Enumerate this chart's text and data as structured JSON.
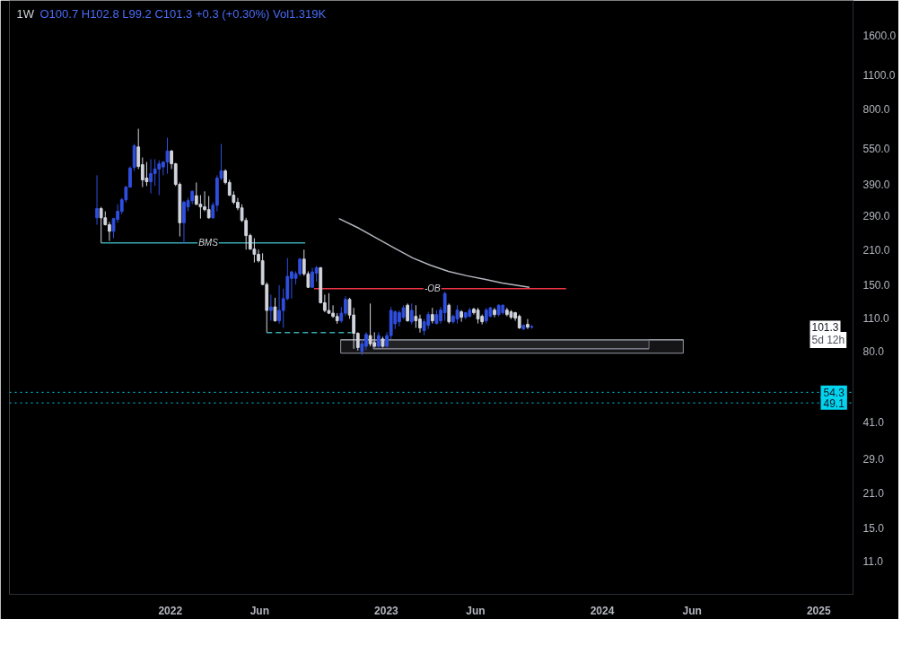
{
  "chart_data": {
    "type": "candlestick",
    "title": "1W",
    "subtitle": "O100.7 H102.8 L99.2 C101.3 +0.3 (+0.30%) Vol1.319K",
    "x": [
      "2021-08-30",
      "2021-09-06",
      "2021-09-13",
      "2021-09-20",
      "2021-09-27",
      "2021-10-04",
      "2021-10-11",
      "2021-10-18",
      "2021-10-25",
      "2021-11-01",
      "2021-11-08",
      "2021-11-15",
      "2021-11-22",
      "2021-11-29",
      "2021-12-06",
      "2021-12-13",
      "2021-12-20",
      "2021-12-27",
      "2022-01-03",
      "2022-01-10",
      "2022-01-17",
      "2022-01-24",
      "2022-01-31",
      "2022-02-07",
      "2022-02-14",
      "2022-02-21",
      "2022-02-28",
      "2022-03-07",
      "2022-03-14",
      "2022-03-21",
      "2022-03-28",
      "2022-04-04",
      "2022-04-11",
      "2022-04-18",
      "2022-04-25",
      "2022-05-02",
      "2022-05-09",
      "2022-05-16",
      "2022-05-23",
      "2022-05-30",
      "2022-06-06",
      "2022-06-13",
      "2022-06-20",
      "2022-06-27",
      "2022-07-04",
      "2022-07-11",
      "2022-07-18",
      "2022-07-25",
      "2022-08-01",
      "2022-08-08",
      "2022-08-15",
      "2022-08-22",
      "2022-08-29",
      "2022-09-05",
      "2022-09-12",
      "2022-09-19",
      "2022-09-26",
      "2022-10-03",
      "2022-10-10",
      "2022-10-17",
      "2022-10-24",
      "2022-10-31",
      "2022-11-07",
      "2022-11-14",
      "2022-11-21",
      "2022-11-28",
      "2022-12-05",
      "2022-12-12",
      "2022-12-19",
      "2022-12-26",
      "2023-01-02",
      "2023-01-09",
      "2023-01-16",
      "2023-01-23",
      "2023-01-30",
      "2023-02-06",
      "2023-02-13",
      "2023-02-20",
      "2023-02-27",
      "2023-03-06",
      "2023-03-13",
      "2023-03-20",
      "2023-03-27",
      "2023-04-03",
      "2023-04-10",
      "2023-04-17",
      "2023-04-24",
      "2023-05-01",
      "2023-05-08",
      "2023-05-15",
      "2023-05-22",
      "2023-05-29",
      "2023-06-05",
      "2023-06-12",
      "2023-06-19",
      "2023-06-26",
      "2023-07-03",
      "2023-07-10",
      "2023-07-17",
      "2023-07-24",
      "2023-07-31",
      "2023-08-07",
      "2023-08-14",
      "2023-08-21",
      "2023-08-28",
      "2023-09-04"
    ],
    "ohlc": [
      [
        284,
        425,
        266,
        310
      ],
      [
        310,
        315,
        224,
        284
      ],
      [
        284,
        302,
        264,
        266
      ],
      [
        266,
        273,
        228,
        250
      ],
      [
        250,
        284,
        234,
        282
      ],
      [
        280,
        323,
        271,
        302
      ],
      [
        302,
        343,
        294,
        337
      ],
      [
        337,
        384,
        329,
        380
      ],
      [
        380,
        462,
        378,
        455
      ],
      [
        458,
        572,
        443,
        562
      ],
      [
        556,
        661,
        451,
        462
      ],
      [
        470,
        503,
        380,
        407
      ],
      [
        414,
        482,
        384,
        400
      ],
      [
        400,
        495,
        358,
        432
      ],
      [
        432,
        495,
        384,
        451
      ],
      [
        451,
        490,
        352,
        474
      ],
      [
        460,
        485,
        425,
        482
      ],
      [
        482,
        607,
        432,
        535
      ],
      [
        535,
        540,
        451,
        474
      ],
      [
        474,
        478,
        384,
        390
      ],
      [
        390,
        397,
        238,
        271
      ],
      [
        271,
        334,
        222,
        329
      ],
      [
        315,
        343,
        302,
        334
      ],
      [
        334,
        368,
        323,
        365
      ],
      [
        350,
        397,
        320,
        323
      ],
      [
        323,
        352,
        282,
        315
      ],
      [
        315,
        365,
        302,
        307
      ],
      [
        307,
        349,
        282,
        284
      ],
      [
        284,
        329,
        282,
        320
      ],
      [
        320,
        425,
        302,
        414
      ],
      [
        414,
        572,
        405,
        443
      ],
      [
        443,
        450,
        390,
        397
      ],
      [
        397,
        407,
        349,
        352
      ],
      [
        352,
        365,
        323,
        329
      ],
      [
        329,
        343,
        305,
        312
      ],
      [
        312,
        323,
        273,
        277
      ],
      [
        277,
        284,
        210,
        240
      ],
      [
        240,
        244,
        210,
        211
      ],
      [
        211,
        234,
        186,
        201
      ],
      [
        201,
        210,
        186,
        189
      ],
      [
        189,
        203,
        150,
        151
      ],
      [
        151,
        154,
        95.7,
        118
      ],
      [
        118,
        137,
        107,
        122
      ],
      [
        122,
        133,
        106,
        107
      ],
      [
        107,
        150,
        104,
        118
      ],
      [
        118,
        145,
        100,
        132
      ],
      [
        132,
        194,
        130,
        163
      ],
      [
        160,
        172,
        132,
        170
      ],
      [
        160,
        171,
        151,
        167
      ],
      [
        167,
        194,
        163,
        192
      ],
      [
        192,
        210,
        164,
        167
      ],
      [
        167,
        171,
        146,
        147
      ],
      [
        147,
        177,
        146,
        170
      ],
      [
        168,
        180,
        155,
        177
      ],
      [
        177,
        178,
        126,
        127
      ],
      [
        127,
        137,
        116,
        118
      ],
      [
        118,
        139,
        114,
        115
      ],
      [
        115,
        124,
        110,
        111.5
      ],
      [
        111.5,
        115,
        104,
        107
      ],
      [
        107,
        122,
        105,
        115
      ],
      [
        115,
        135,
        112,
        131
      ],
      [
        131,
        133,
        109,
        113
      ],
      [
        113,
        121,
        82,
        95
      ],
      [
        95,
        96,
        80.7,
        83
      ],
      [
        80,
        90,
        77.3,
        86
      ],
      [
        84,
        96,
        81,
        94
      ],
      [
        93,
        126,
        84,
        86
      ],
      [
        87,
        96,
        83,
        84
      ],
      [
        84,
        96,
        83,
        93
      ],
      [
        90,
        92,
        83,
        84
      ],
      [
        84,
        96,
        83,
        93
      ],
      [
        93,
        122,
        90,
        118
      ],
      [
        104,
        118,
        99,
        116.5
      ],
      [
        106,
        118,
        101.5,
        115.5
      ],
      [
        110.6,
        124,
        108.8,
        121
      ],
      [
        124,
        126,
        106,
        107
      ],
      [
        106,
        126,
        103.4,
        118
      ],
      [
        111.6,
        124,
        100,
        107
      ],
      [
        108.8,
        113.5,
        95.7,
        100
      ],
      [
        97.4,
        108.8,
        93.3,
        106
      ],
      [
        102.5,
        116.5,
        99,
        113.5
      ],
      [
        113.5,
        121,
        104.3,
        107
      ],
      [
        104.3,
        118.4,
        103.4,
        113.5
      ],
      [
        107,
        122,
        104.3,
        118.4
      ],
      [
        115.5,
        141,
        107,
        138.5
      ],
      [
        124,
        126,
        104.3,
        106
      ],
      [
        106,
        113.5,
        104.3,
        111.6
      ],
      [
        108.8,
        124,
        104.3,
        118.4
      ],
      [
        116.5,
        118.4,
        106,
        110.6
      ],
      [
        110.6,
        116.5,
        108.8,
        115.5
      ],
      [
        111.6,
        121,
        110.6,
        118.4
      ],
      [
        119.4,
        121,
        113.5,
        115.5
      ],
      [
        118.4,
        121,
        104.3,
        108.8
      ],
      [
        111.6,
        113.5,
        103.4,
        106
      ],
      [
        107,
        121,
        104.3,
        118.4
      ],
      [
        111.6,
        122,
        110.6,
        121
      ],
      [
        118.4,
        121,
        110.6,
        113.5
      ],
      [
        113.5,
        125,
        111.6,
        124
      ],
      [
        115.5,
        125,
        113.5,
        124
      ],
      [
        118.4,
        121,
        111.6,
        113.5
      ],
      [
        116.5,
        118.4,
        108.8,
        110.6
      ],
      [
        115.5,
        116.5,
        107,
        109.7
      ],
      [
        111.6,
        113.5,
        99,
        100
      ],
      [
        99,
        103.4,
        98.1,
        102.5
      ],
      [
        103.4,
        108.8,
        99,
        100.7
      ],
      [
        100.7,
        102.8,
        99.2,
        101.3
      ]
    ],
    "colors": [
      "#2f4fe0",
      "#d1d4dc",
      "#d1d4dc",
      "#d1d4dc",
      "#2f4fe0",
      "#2f4fe0",
      "#2f4fe0",
      "#2f4fe0",
      "#2f4fe0",
      "#2f4fe0",
      "#d1d4dc",
      "#d1d4dc",
      "#d1d4dc",
      "#2f4fe0",
      "#2f4fe0",
      "#2f4fe0",
      "#2f4fe0",
      "#2f4fe0",
      "#d1d4dc",
      "#d1d4dc",
      "#d1d4dc",
      "#2f4fe0",
      "#2f4fe0",
      "#2f4fe0",
      "#d1d4dc",
      "#d1d4dc",
      "#d1d4dc",
      "#d1d4dc",
      "#2f4fe0",
      "#2f4fe0",
      "#2f4fe0",
      "#d1d4dc",
      "#d1d4dc",
      "#d1d4dc",
      "#d1d4dc",
      "#d1d4dc",
      "#d1d4dc",
      "#d1d4dc",
      "#d1d4dc",
      "#d1d4dc",
      "#d1d4dc",
      "#d1d4dc",
      "#2f4fe0",
      "#d1d4dc",
      "#2f4fe0",
      "#2f4fe0",
      "#2f4fe0",
      "#2f4fe0",
      "#2f4fe0",
      "#2f4fe0",
      "#d1d4dc",
      "#d1d4dc",
      "#2f4fe0",
      "#2f4fe0",
      "#d1d4dc",
      "#d1d4dc",
      "#d1d4dc",
      "#d1d4dc",
      "#d1d4dc",
      "#2f4fe0",
      "#2f4fe0",
      "#d1d4dc",
      "#d1d4dc",
      "#d1d4dc",
      "#2f4fe0",
      "#2f4fe0",
      "#d1d4dc",
      "#d1d4dc",
      "#2f4fe0",
      "#d1d4dc",
      "#2f4fe0",
      "#2f4fe0",
      "#2f4fe0",
      "#2f4fe0",
      "#2f4fe0",
      "#d1d4dc",
      "#2f4fe0",
      "#d1d4dc",
      "#d1d4dc",
      "#2f4fe0",
      "#2f4fe0",
      "#d1d4dc",
      "#2f4fe0",
      "#2f4fe0",
      "#2f4fe0",
      "#d1d4dc",
      "#2f4fe0",
      "#2f4fe0",
      "#d1d4dc",
      "#2f4fe0",
      "#2f4fe0",
      "#d1d4dc",
      "#d1d4dc",
      "#d1d4dc",
      "#2f4fe0",
      "#2f4fe0",
      "#d1d4dc",
      "#2f4fe0",
      "#2f4fe0",
      "#d1d4dc",
      "#d1d4dc",
      "#d1d4dc",
      "#d1d4dc",
      "#2f4fe0",
      "#d1d4dc",
      "#2f4fe0"
    ],
    "series": [
      {
        "type": "line",
        "color": "#3aa7b0",
        "x": [
          "2021-09-06",
          "2022-08-17"
        ],
        "values": [
          224,
          224
        ]
      },
      {
        "type": "line",
        "color": "#3aa7b0",
        "line_style": "dashed",
        "x": [
          "2022-06-13",
          "2022-11-03"
        ],
        "values": [
          95.7,
          95.7
        ]
      },
      {
        "type": "line",
        "color": "#f23645",
        "x": [
          "2022-09-01",
          "2023-11-01"
        ],
        "values": [
          145,
          145
        ]
      },
      {
        "type": "line",
        "color": "#b2b5be",
        "x": [
          "2022-10-13",
          "2022-11-16",
          "2022-12-16",
          "2023-01-15",
          "2023-02-15",
          "2023-03-17",
          "2023-04-16",
          "2023-05-17",
          "2023-06-16",
          "2023-07-16",
          "2023-08-31"
        ],
        "values": [
          282,
          257,
          234,
          213,
          194,
          181,
          171,
          164,
          158.6,
          153,
          147
        ]
      },
      {
        "type": "line",
        "color": "#9598a1",
        "x": [
          "2022-10-16",
          "2024-05-17"
        ],
        "values": [
          89.4,
          89.4
        ],
        "lower": [
          78.7,
          78.7
        ],
        "upper": [
          89.4,
          89.4
        ]
      },
      {
        "type": "line",
        "color": "#787b86",
        "x": [
          "2022-12-10",
          "2024-03-20"
        ],
        "values": [
          82.1,
          82.1
        ],
        "lower": [
          82.1,
          82.1
        ],
        "upper": [
          89.4,
          89.4
        ]
      }
    ],
    "ref_lines": [
      {
        "axis": "y",
        "value": 54.3,
        "label": "54.3",
        "color": "#00d4ef",
        "line_style": "dotted"
      },
      {
        "axis": "y",
        "value": 49.1,
        "label": "49.1",
        "color": "#00d4ef",
        "line_style": "dotted"
      }
    ],
    "annotations": [
      {
        "text": "BMS",
        "x": "2022-03-06",
        "y": 224
      },
      {
        "text": "-OB",
        "x": "2023-03-20",
        "y": 145
      },
      "101.3",
      "5d 12h"
    ],
    "log": true,
    "xlim": [
      "2021-04-04",
      "2025-02-28"
    ],
    "ylim": [
      8,
      2230
    ],
    "xticks": [
      {
        "value": "2022-01-01",
        "label": "2022"
      },
      {
        "value": "2022-06-01",
        "label": "Jun"
      },
      {
        "value": "2023-01-01",
        "label": "2023"
      },
      {
        "value": "2023-06-01",
        "label": "Jun"
      },
      {
        "value": "2024-01-01",
        "label": "2024"
      },
      {
        "value": "2024-06-01",
        "label": "Jun"
      },
      {
        "value": "2025-01-01",
        "label": "2025"
      }
    ],
    "yticks": [
      {
        "value": 1600,
        "label": "1600.0"
      },
      {
        "value": 1100,
        "label": "1100.0"
      },
      {
        "value": 800,
        "label": "800.0"
      },
      {
        "value": 550,
        "label": "550.0"
      },
      {
        "value": 390,
        "label": "390.0"
      },
      {
        "value": 290,
        "label": "290.0"
      },
      {
        "value": 210,
        "label": "210.0"
      },
      {
        "value": 150,
        "label": "150.0"
      },
      {
        "value": 110,
        "label": "110.0"
      },
      {
        "value": 80,
        "label": "80.0"
      },
      {
        "value": 41,
        "label": "41.0"
      },
      {
        "value": 29,
        "label": "29.0"
      },
      {
        "value": 21,
        "label": "21.0"
      },
      {
        "value": 15,
        "label": "15.0"
      },
      {
        "value": 11,
        "label": "11.0"
      }
    ]
  }
}
